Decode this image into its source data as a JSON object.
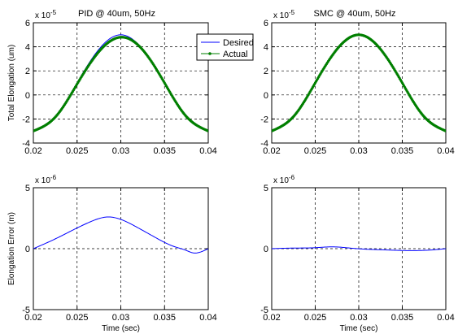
{
  "colors": {
    "desired": "#0000ff",
    "actual": "#007f00",
    "axes": "#000000",
    "grid": "#000000"
  },
  "chart_data": [
    {
      "type": "line",
      "title": "PID @ 40um, 50Hz",
      "ylabel": "Total Elongation (um)",
      "xlabel": "",
      "exponent_label": "x 10",
      "exponent": "-5",
      "xlim": [
        0.02,
        0.04
      ],
      "ylim": [
        -4,
        6
      ],
      "xticks": [
        "0.02",
        "0.025",
        "0.03",
        "0.035",
        "0.04"
      ],
      "yticks": [
        "-4",
        "-2",
        "0",
        "2",
        "4",
        "6"
      ],
      "grid": true,
      "legend": {
        "position": "top-right",
        "entries": [
          "Desired",
          "Actual"
        ]
      },
      "series": [
        {
          "name": "Desired",
          "style": "line",
          "x": [
            0.02,
            0.0225,
            0.025,
            0.0275,
            0.03,
            0.0325,
            0.035,
            0.0375,
            0.04
          ],
          "y": [
            -3.0,
            -1.8,
            1.0,
            3.8,
            5.0,
            3.8,
            1.0,
            -1.8,
            -3.0
          ]
        },
        {
          "name": "Actual",
          "style": "line-markers",
          "x": [
            0.02,
            0.0225,
            0.025,
            0.0275,
            0.03,
            0.0325,
            0.035,
            0.0375,
            0.04
          ],
          "y": [
            -3.0,
            -1.85,
            0.9,
            3.6,
            4.8,
            3.75,
            1.0,
            -1.8,
            -3.0
          ]
        }
      ]
    },
    {
      "type": "line",
      "title": "SMC @ 40um, 50Hz",
      "ylabel": "",
      "xlabel": "",
      "exponent_label": "x 10",
      "exponent": "-5",
      "xlim": [
        0.02,
        0.04
      ],
      "ylim": [
        -4,
        6
      ],
      "xticks": [
        "0.02",
        "0.025",
        "0.03",
        "0.035",
        "0.04"
      ],
      "yticks": [
        "-4",
        "-2",
        "0",
        "2",
        "4",
        "6"
      ],
      "grid": true,
      "series": [
        {
          "name": "Desired",
          "style": "line",
          "x": [
            0.02,
            0.0225,
            0.025,
            0.0275,
            0.03,
            0.0325,
            0.035,
            0.0375,
            0.04
          ],
          "y": [
            -3.0,
            -1.8,
            1.0,
            3.8,
            5.0,
            3.8,
            1.0,
            -1.8,
            -3.0
          ]
        },
        {
          "name": "Actual",
          "style": "line-markers",
          "x": [
            0.02,
            0.0225,
            0.025,
            0.0275,
            0.03,
            0.0325,
            0.035,
            0.0375,
            0.04
          ],
          "y": [
            -3.0,
            -1.8,
            1.0,
            3.8,
            5.0,
            3.8,
            1.0,
            -1.8,
            -3.0
          ]
        }
      ]
    },
    {
      "type": "line",
      "title": "",
      "ylabel": "Elongation Error (m)",
      "xlabel": "Time (sec)",
      "exponent_label": "x 10",
      "exponent": "-6",
      "xlim": [
        0.02,
        0.04
      ],
      "ylim": [
        -5,
        5
      ],
      "xticks": [
        "0.02",
        "0.025",
        "0.03",
        "0.035",
        "0.04"
      ],
      "yticks": [
        "-5",
        "0",
        "5"
      ],
      "grid": true,
      "series": [
        {
          "name": "Error",
          "style": "line",
          "x": [
            0.02,
            0.0225,
            0.025,
            0.0265,
            0.0285,
            0.03,
            0.032,
            0.034,
            0.036,
            0.0375,
            0.0383,
            0.039,
            0.04
          ],
          "y": [
            0.0,
            0.8,
            1.7,
            2.2,
            2.6,
            2.4,
            1.7,
            0.9,
            0.2,
            -0.15,
            -0.35,
            -0.3,
            0.0
          ]
        }
      ]
    },
    {
      "type": "line",
      "title": "",
      "ylabel": "",
      "xlabel": "Time (sec)",
      "exponent_label": "x 10",
      "exponent": "-6",
      "xlim": [
        0.02,
        0.04
      ],
      "ylim": [
        -5,
        5
      ],
      "xticks": [
        "0.02",
        "0.025",
        "0.03",
        "0.035",
        "0.04"
      ],
      "yticks": [
        "-5",
        "0",
        "5"
      ],
      "grid": true,
      "series": [
        {
          "name": "Error",
          "style": "line",
          "x": [
            0.02,
            0.0225,
            0.025,
            0.027,
            0.029,
            0.031,
            0.033,
            0.035,
            0.037,
            0.0385,
            0.04
          ],
          "y": [
            0.0,
            0.05,
            0.08,
            0.15,
            0.05,
            -0.05,
            -0.1,
            -0.15,
            -0.15,
            -0.1,
            0.0
          ]
        }
      ]
    }
  ]
}
